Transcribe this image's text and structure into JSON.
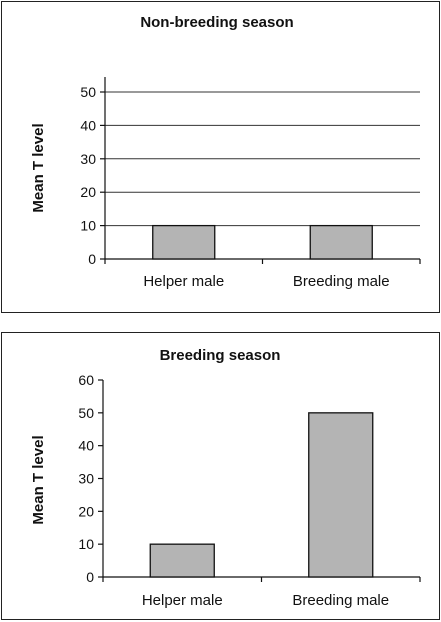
{
  "chart_data": [
    {
      "type": "bar",
      "title": "Non-breeding season",
      "ylabel": "Mean T level",
      "xlabel": "",
      "categories": [
        "Helper male",
        "Breeding male"
      ],
      "values": [
        10,
        10
      ],
      "ylim": [
        0,
        50
      ],
      "yticks": [
        0,
        10,
        20,
        30,
        40,
        50
      ],
      "grid": true,
      "bar_color": "#b4b4b4"
    },
    {
      "type": "bar",
      "title": "Breeding season",
      "ylabel": "Mean T level",
      "xlabel": "",
      "categories": [
        "Helper male",
        "Breeding male"
      ],
      "values": [
        10,
        50
      ],
      "ylim": [
        0,
        60
      ],
      "yticks": [
        0,
        10,
        20,
        30,
        40,
        50,
        60
      ],
      "grid": false,
      "bar_color": "#b4b4b4"
    }
  ]
}
